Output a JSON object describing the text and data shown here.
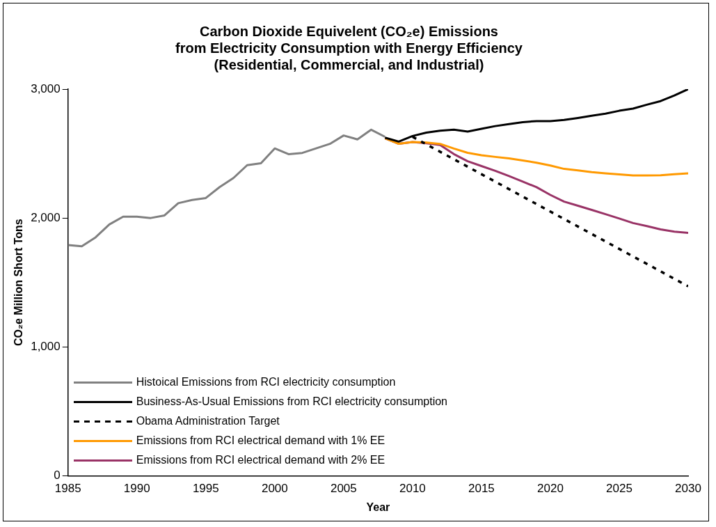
{
  "chart_data": {
    "type": "line",
    "title": "Carbon Dioxide Equivelent (CO₂e) Emissions\nfrom Electricity Consumption with Energy Efficiency\n(Residential, Commercial, and Industrial)",
    "xlabel": "Year",
    "ylabel": "CO₂e Million Short Tons",
    "xlim": [
      1985,
      2030
    ],
    "xticks": [
      1985,
      1990,
      1995,
      2000,
      2005,
      2010,
      2015,
      2020,
      2025,
      2030
    ],
    "ylim": [
      0,
      3000
    ],
    "yticks": [
      0,
      {
        "value": 1000,
        "label": "1,000"
      },
      {
        "value": 2000,
        "label": "2,000"
      },
      {
        "value": 3000,
        "label": "3,000"
      }
    ],
    "grid": false,
    "legend": "bottom left",
    "marker": "none",
    "series": [
      {
        "name": "Histoical Emissions from RCI electricity consumption",
        "color": "#808080",
        "line_style": "solid",
        "x": [
          1985,
          1986,
          1987,
          1988,
          1989,
          1990,
          1991,
          1992,
          1993,
          1994,
          1995,
          1996,
          1997,
          1998,
          1999,
          2000,
          2001,
          2002,
          2003,
          2004,
          2005,
          2006,
          2007,
          2008
        ],
        "values": [
          1790,
          1780,
          1850,
          1950,
          2010,
          2010,
          2000,
          2020,
          2115,
          2140,
          2155,
          2240,
          2310,
          2410,
          2425,
          2540,
          2495,
          2505,
          2540,
          2575,
          2640,
          2610,
          2685,
          2630
        ]
      },
      {
        "name": "Business-As-Usual Emissions from RCI electricity consumption",
        "color": "#000000",
        "line_style": "solid",
        "x": [
          2008,
          2009,
          2010,
          2011,
          2012,
          2013,
          2014,
          2015,
          2016,
          2017,
          2018,
          2019,
          2020,
          2021,
          2022,
          2023,
          2024,
          2025,
          2026,
          2027,
          2028,
          2029,
          2030
        ],
        "values": [
          2623,
          2593,
          2636,
          2662,
          2677,
          2685,
          2671,
          2692,
          2713,
          2728,
          2744,
          2752,
          2752,
          2761,
          2776,
          2793,
          2810,
          2832,
          2849,
          2879,
          2907,
          2951,
          3000
        ]
      },
      {
        "name": "Obama Administration Target",
        "color": "#000000",
        "line_style": "dashed",
        "x": [
          2010,
          2030
        ],
        "values": [
          2630,
          1470
        ]
      },
      {
        "name": "Emissions from RCI electrical demand with 1% EE",
        "color": "#ff9900",
        "line_style": "solid",
        "x": [
          2008,
          2009,
          2010,
          2011,
          2012,
          2013,
          2014,
          2015,
          2016,
          2017,
          2018,
          2019,
          2020,
          2021,
          2022,
          2023,
          2024,
          2025,
          2026,
          2027,
          2028,
          2029,
          2030
        ],
        "values": [
          2618,
          2576,
          2590,
          2586,
          2575,
          2539,
          2506,
          2487,
          2474,
          2463,
          2446,
          2429,
          2407,
          2381,
          2369,
          2356,
          2347,
          2338,
          2330,
          2330,
          2332,
          2340,
          2347
        ]
      },
      {
        "name": "Emissions from RCI electrical demand with 2% EE",
        "color": "#993366",
        "line_style": "solid",
        "x": [
          2008,
          2009,
          2010,
          2011,
          2012,
          2013,
          2014,
          2015,
          2016,
          2017,
          2018,
          2019,
          2020,
          2021,
          2022,
          2023,
          2024,
          2025,
          2026,
          2027,
          2028,
          2029,
          2030
        ],
        "values": [
          2618,
          2576,
          2590,
          2580,
          2567,
          2496,
          2440,
          2403,
          2366,
          2325,
          2282,
          2239,
          2179,
          2127,
          2095,
          2063,
          2030,
          1996,
          1961,
          1937,
          1912,
          1894,
          1884
        ]
      }
    ]
  }
}
